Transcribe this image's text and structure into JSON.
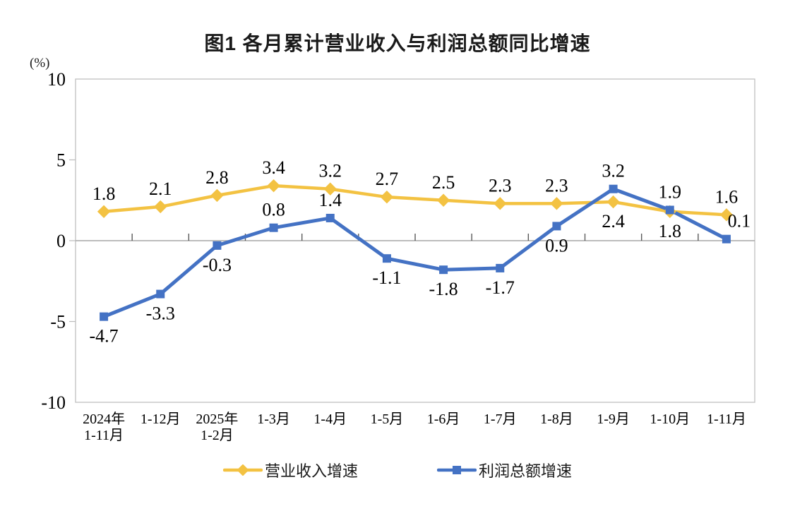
{
  "title": "图1 各月累计营业收入与利润总额同比增速",
  "y_axis": {
    "unit": "(%)"
  },
  "chart_data": {
    "type": "line",
    "title": "图1 各月累计营业收入与利润总额同比增速",
    "ylabel": "(%)",
    "ylim": [
      -10,
      10
    ],
    "y_ticks": [
      10,
      5,
      0,
      -5,
      -10
    ],
    "grid": false,
    "legend_position": "bottom",
    "categories": [
      [
        "2024年",
        "1-11月"
      ],
      [
        "1-12月"
      ],
      [
        "2025年",
        "1-2月"
      ],
      [
        "1-3月"
      ],
      [
        "1-4月"
      ],
      [
        "1-5月"
      ],
      [
        "1-6月"
      ],
      [
        "1-7月"
      ],
      [
        "1-8月"
      ],
      [
        "1-9月"
      ],
      [
        "1-10月"
      ],
      [
        "1-11月"
      ]
    ],
    "series": [
      {
        "name": "营业收入增速",
        "color": "#F3C242",
        "marker": "diamond",
        "values": [
          1.8,
          2.1,
          2.8,
          3.4,
          3.2,
          2.7,
          2.5,
          2.3,
          2.3,
          2.4,
          1.8,
          1.6
        ],
        "label_pos": [
          "above",
          "above",
          "above",
          "above",
          "above",
          "above",
          "above",
          "above",
          "above",
          "below",
          "below",
          "above"
        ],
        "label_dx": [
          0,
          0,
          0,
          0,
          0,
          0,
          0,
          0,
          0,
          0,
          0,
          0
        ]
      },
      {
        "name": "利润总额增速",
        "color": "#4472C4",
        "marker": "square",
        "values": [
          -4.7,
          -3.3,
          -0.3,
          0.8,
          1.4,
          -1.1,
          -1.8,
          -1.7,
          0.9,
          3.2,
          1.9,
          0.1
        ],
        "label_pos": [
          "below",
          "below",
          "below",
          "above",
          "above",
          "below",
          "below",
          "below",
          "below",
          "above",
          "above",
          "above"
        ],
        "label_dx": [
          0,
          0,
          0,
          0,
          0,
          0,
          0,
          0,
          0,
          0,
          0,
          18
        ]
      }
    ],
    "colors": {
      "frame": "#BFBFBF",
      "zero_line": "#A6A6A6",
      "axis_tick": "#595959",
      "text": "#1a1a1a"
    }
  }
}
